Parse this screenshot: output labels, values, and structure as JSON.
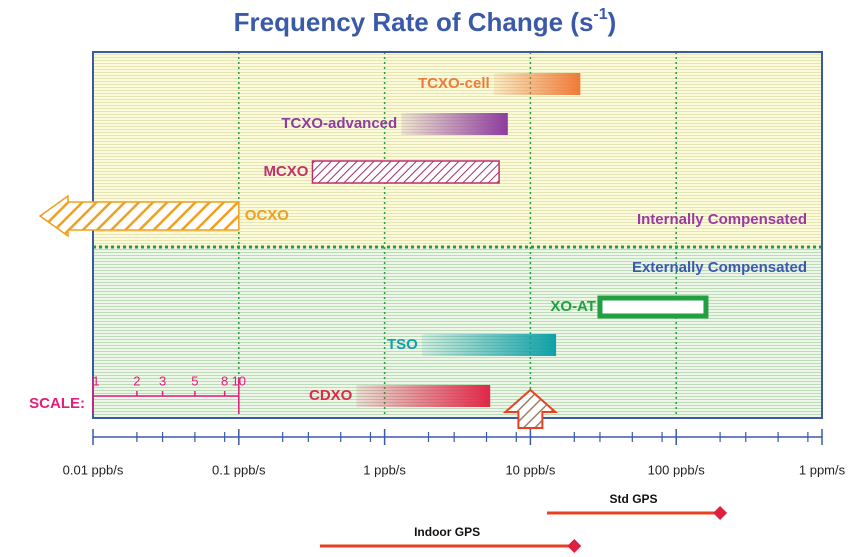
{
  "chart_data": {
    "type": "range",
    "title": "Frequency Rate of Change  (s",
    "title_sup": "-1",
    "title_end": ")",
    "xscale": "log",
    "xlim": [
      0.01,
      1000
    ],
    "xticks": [
      {
        "value": 0.01,
        "label": "0.01 ppb/s"
      },
      {
        "value": 0.1,
        "label": "0.1 ppb/s"
      },
      {
        "value": 1,
        "label": "1 ppb/s"
      },
      {
        "value": 10,
        "label": "10 ppb/s"
      },
      {
        "value": 100,
        "label": "100 ppb/s"
      },
      {
        "value": 1000,
        "label": "1 ppm/s"
      }
    ],
    "grid": true,
    "regions": [
      {
        "label": "Internally Compensated",
        "color": "#9a3aa0"
      },
      {
        "label": "Externally Compensated",
        "color": "#3a5ab0"
      }
    ],
    "series": [
      {
        "name": "TCXO-cell",
        "low": 5.6,
        "high": 22,
        "color": "#f07a38",
        "style": "gradient"
      },
      {
        "name": "TCXO-advanced",
        "low": 1.3,
        "high": 7,
        "color": "#8e3c9e",
        "style": "gradient"
      },
      {
        "name": "MCXO",
        "low": 0.32,
        "high": 6.1,
        "color": "#c0306a",
        "style": "hatch"
      },
      {
        "name": "OCXO",
        "high": 0.1,
        "color": "#f0a020",
        "style": "arrow-left"
      },
      {
        "name": "XO-AT",
        "low": 30,
        "high": 160,
        "color": "#20a040",
        "style": "outline"
      },
      {
        "name": "TSO",
        "low": 1.8,
        "high": 15,
        "color": "#10a0a8",
        "style": "gradient"
      },
      {
        "name": "CDXO",
        "low": 0.64,
        "high": 5.3,
        "color": "#e02848",
        "style": "gradient"
      }
    ],
    "marker": {
      "value": 10,
      "color": "#e84020"
    },
    "scale": {
      "label": "SCALE:",
      "ticks": [
        1,
        2,
        3,
        5,
        8,
        10
      ],
      "color": "#e0207a"
    },
    "gps": [
      {
        "name": "Std GPS",
        "low": 13,
        "high": 200,
        "color": "#e84020"
      },
      {
        "name": "Indoor GPS",
        "low": 0.36,
        "high": 20,
        "color": "#e84020"
      }
    ]
  }
}
